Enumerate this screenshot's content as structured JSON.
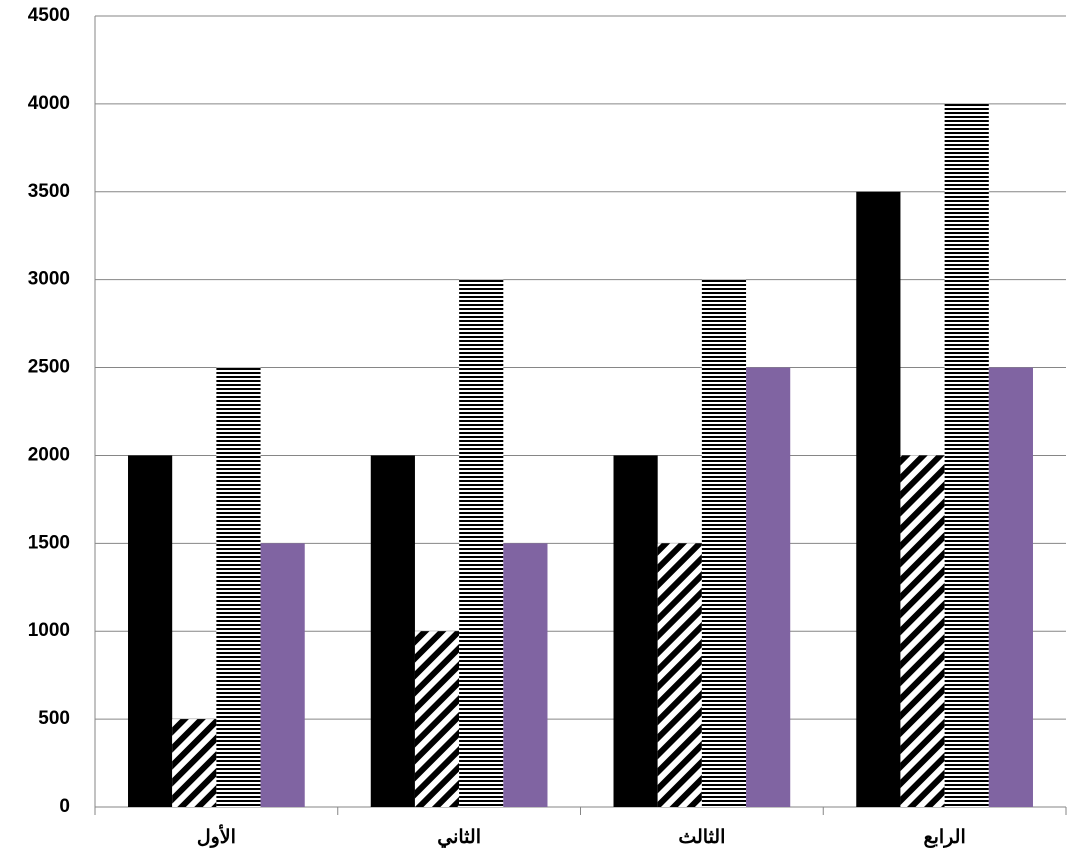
{
  "chart_data": {
    "type": "bar",
    "categories": [
      "الأول",
      "الثاني",
      "الثالث",
      "الرابع"
    ],
    "series": [
      {
        "color": "#000000",
        "pattern": "solid",
        "values": [
          2000,
          2000,
          2000,
          3500
        ]
      },
      {
        "color": "#000000",
        "pattern": "diagonal",
        "values": [
          500,
          1000,
          1500,
          2000
        ]
      },
      {
        "color": "#000000",
        "pattern": "horizontal",
        "values": [
          2500,
          3000,
          3000,
          4000
        ]
      },
      {
        "color": "#8064a2",
        "pattern": "solid",
        "values": [
          1500,
          1500,
          2500,
          2500
        ]
      }
    ],
    "ylim": [
      0,
      4500
    ],
    "yticks": [
      0,
      500,
      1000,
      1500,
      2000,
      2500,
      3000,
      3500,
      4000,
      4500
    ],
    "grid": true
  }
}
